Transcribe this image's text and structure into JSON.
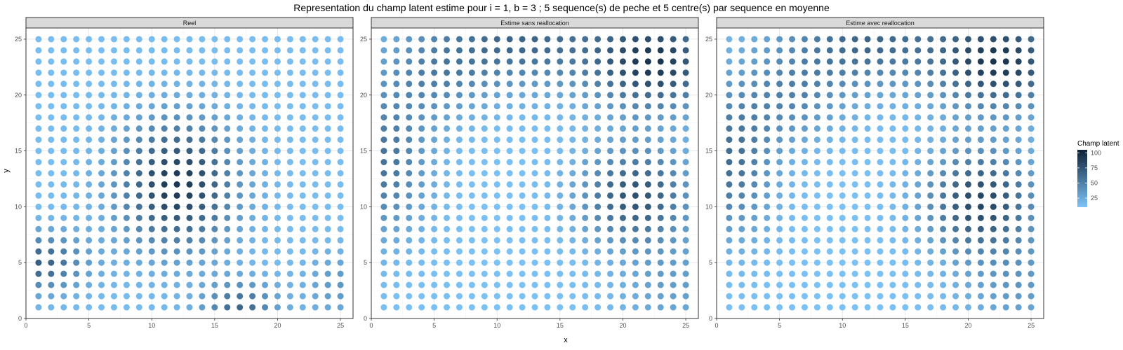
{
  "chart_data": {
    "type": "scatter",
    "title": "Representation du champ latent estime pour i = 1, b = 3 ; 5 sequence(s) de peche et 5 centre(s) par sequence en moyenne",
    "xlabel": "x",
    "ylabel": "y",
    "xlim": [
      0,
      26
    ],
    "ylim": [
      0,
      26
    ],
    "xticks": [
      0,
      5,
      10,
      15,
      20,
      25
    ],
    "yticks": [
      0,
      5,
      10,
      15,
      20,
      25
    ],
    "grid": true,
    "legend": {
      "title": "Champ latent",
      "placement": "right",
      "ticks": [
        25,
        50,
        75,
        100
      ],
      "range": [
        10,
        105
      ],
      "colors": {
        "low": "#7ec4f8",
        "high": "#0e2238"
      }
    },
    "facets": [
      {
        "label": "Reel",
        "grid_points": "x = 1..25, y = 1..25",
        "components": [
          {
            "cx": 12,
            "cy": 12,
            "amp": 78,
            "sx": 3.2,
            "sy": 4.0
          },
          {
            "cx": 1,
            "cy": 5,
            "amp": 55,
            "sx": 2.6,
            "sy": 1.8
          },
          {
            "cx": 17,
            "cy": 1,
            "amp": 50,
            "sx": 2.0,
            "sy": 1.6
          },
          {
            "cx": 25,
            "cy": 3,
            "amp": 22,
            "sx": 2.0,
            "sy": 2.0
          }
        ],
        "base": 14
      },
      {
        "label": "Estime sans reallocation",
        "grid_points": "x = 1..25, y = 1..25",
        "components": [
          {
            "cx": 22.5,
            "cy": 23,
            "amp": 80,
            "sx": 3.5,
            "sy": 3.0
          },
          {
            "cx": 21,
            "cy": 11,
            "amp": 65,
            "sx": 3.0,
            "sy": 3.0
          },
          {
            "cx": 12,
            "cy": 25,
            "amp": 52,
            "sx": 4.5,
            "sy": 3.0
          },
          {
            "cx": 1,
            "cy": 14,
            "amp": 45,
            "sx": 2.5,
            "sy": 4.5
          },
          {
            "cx": 5,
            "cy": 22,
            "amp": 30,
            "sx": 3.0,
            "sy": 3.0
          },
          {
            "cx": 24,
            "cy": 3,
            "amp": 20,
            "sx": 3.0,
            "sy": 3.0
          }
        ],
        "base": 12
      },
      {
        "label": "Estime avec reallocation",
        "grid_points": "x = 1..25, y = 1..25",
        "components": [
          {
            "cx": 22.5,
            "cy": 23,
            "amp": 80,
            "sx": 3.5,
            "sy": 3.0
          },
          {
            "cx": 21,
            "cy": 10.5,
            "amp": 72,
            "sx": 3.0,
            "sy": 3.2
          },
          {
            "cx": 12,
            "cy": 25,
            "amp": 52,
            "sx": 4.5,
            "sy": 3.0
          },
          {
            "cx": 1,
            "cy": 14,
            "amp": 48,
            "sx": 2.5,
            "sy": 4.5
          },
          {
            "cx": 6,
            "cy": 20,
            "amp": 30,
            "sx": 3.0,
            "sy": 3.0
          },
          {
            "cx": 24,
            "cy": 3,
            "amp": 22,
            "sx": 3.0,
            "sy": 3.0
          }
        ],
        "base": 12
      }
    ]
  }
}
